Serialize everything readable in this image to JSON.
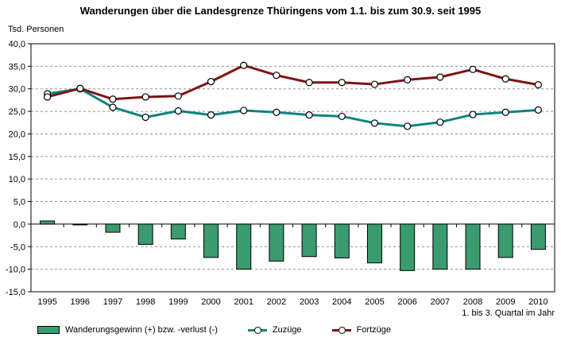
{
  "page": {
    "title": "Wanderungen über die Landesgrenze Thüringens vom 1.1. bis zum 30.9. seit 1995",
    "unit_label": "Tsd. Personen",
    "x_note": "1. bis 3. Quartal im Jahr"
  },
  "colors": {
    "bar_fill": "#3a9c6e",
    "bar_border": "#000000",
    "zuzuege_line": "#0f8480",
    "fortzuege_line": "#7f1315",
    "gridline": "#909090",
    "axis": "#000000",
    "marker_fill": "#ffffff",
    "marker_border": "#000000"
  },
  "chart_data": {
    "type": "bar",
    "combo": "bars plus two line series with circle markers",
    "title": "Wanderungen über die Landesgrenze Thüringens vom 1.1. bis zum 30.9. seit 1995",
    "ylabel": "Tsd. Personen",
    "xlabel": "1. bis 3. Quartal im Jahr",
    "categories": [
      "1995",
      "1996",
      "1997",
      "1998",
      "1999",
      "2000",
      "2001",
      "2002",
      "2003",
      "2004",
      "2005",
      "2006",
      "2007",
      "2008",
      "2009",
      "2010"
    ],
    "ylim": [
      -15,
      40
    ],
    "ytick_values": [
      40,
      35,
      30,
      25,
      20,
      15,
      10,
      5,
      0,
      -5,
      -10,
      -15
    ],
    "ytick_labels": [
      "40,0",
      "35,0",
      "30,0",
      "25,0",
      "20,0",
      "15,0",
      "10,0",
      "5,0",
      "0,0",
      "-5,0",
      "-10,0",
      "-15,0"
    ],
    "grid": "horizontal dashed gridlines at every 5, solid axis at 0, solid plot border",
    "legend_position": "bottom",
    "series": [
      {
        "name": "Wanderungsgewinn (+) bzw. -verlust (-)",
        "type": "bar",
        "values": [
          0.7,
          -0.1,
          -1.8,
          -4.5,
          -3.3,
          -7.4,
          -10.0,
          -8.2,
          -7.2,
          -7.5,
          -8.6,
          -10.3,
          -10.0,
          -10.0,
          -7.4,
          -5.6
        ]
      },
      {
        "name": "Zuzüge",
        "type": "line",
        "values": [
          28.9,
          30.0,
          25.9,
          23.7,
          25.1,
          24.2,
          25.2,
          24.8,
          24.2,
          23.9,
          22.4,
          21.7,
          22.6,
          24.3,
          24.8,
          25.3
        ]
      },
      {
        "name": "Fortzüge",
        "type": "line",
        "values": [
          28.2,
          30.1,
          27.7,
          28.2,
          28.4,
          31.6,
          35.2,
          33.0,
          31.4,
          31.4,
          31.0,
          32.0,
          32.6,
          34.3,
          32.2,
          30.9
        ]
      }
    ]
  }
}
